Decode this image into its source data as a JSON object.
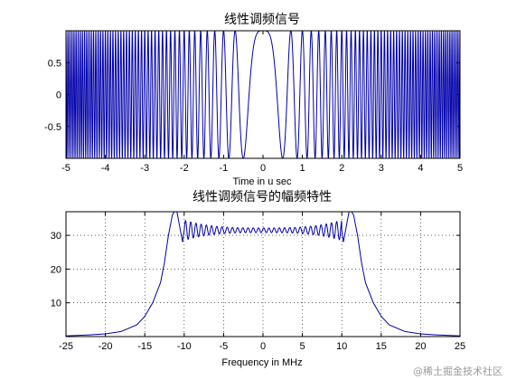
{
  "chart_data": [
    {
      "type": "line",
      "title": "线性调频信号",
      "xlabel": "Time in u sec",
      "ylabel": "",
      "xlim": [
        -5,
        5
      ],
      "ylim": [
        -1,
        1
      ],
      "xticks": [
        -5,
        -4,
        -3,
        -2,
        -1,
        0,
        1,
        2,
        3,
        4,
        5
      ],
      "yticks": [
        -0.5,
        0,
        0.5
      ],
      "ytick_labels": [
        "-0.5",
        "0",
        "0.5"
      ],
      "grid": false,
      "line_color": "#0000aa",
      "series": [
        {
          "function": "cos(pi*K*t^2)",
          "K": 4,
          "t_range": [
            -5,
            5
          ],
          "unit": "u sec"
        }
      ]
    },
    {
      "type": "line",
      "title": "线性调频信号的幅频特性",
      "xlabel": "Frequency in MHz",
      "ylabel": "",
      "xlim": [
        -25,
        25
      ],
      "ylim": [
        0,
        37
      ],
      "xticks": [
        -25,
        -20,
        -15,
        -10,
        -5,
        0,
        5,
        10,
        15,
        20,
        25
      ],
      "yticks": [
        10,
        20,
        30
      ],
      "grid": true,
      "line_color": "#0000aa",
      "series": [
        {
          "x": [
            -25,
            -22,
            -20,
            -18,
            -16,
            -15,
            -14,
            -13,
            -12.5,
            -12,
            -11.5,
            -11,
            -10.6,
            -10.2,
            -10,
            0,
            10,
            10.2,
            10.6,
            11,
            11.5,
            12,
            12.5,
            13,
            14,
            15,
            16,
            18,
            20,
            22,
            25
          ],
          "y": [
            0.2,
            0.5,
            0.8,
            1.5,
            3.5,
            6,
            10,
            16,
            22,
            30,
            36,
            38,
            33,
            28,
            31.5,
            31.5,
            31.5,
            28,
            33,
            38,
            36,
            30,
            22,
            16,
            10,
            6,
            3.5,
            1.5,
            0.8,
            0.5,
            0.2
          ],
          "ripple": "passband oscillation around 31.5 between -10 and 10 MHz"
        }
      ]
    }
  ],
  "watermark": "@稀土掘金技术社区"
}
